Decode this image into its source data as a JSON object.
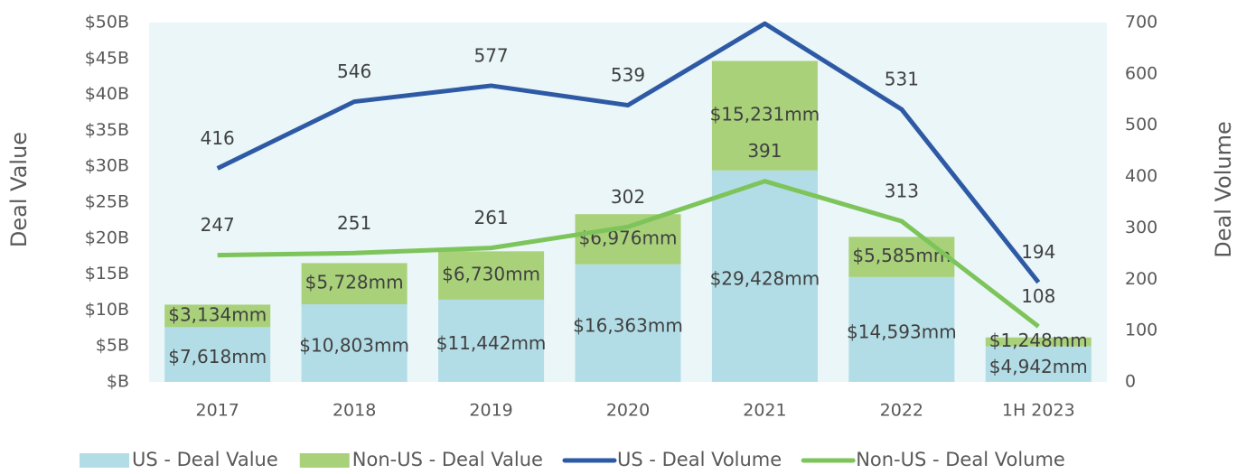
{
  "chart_data": {
    "type": "bar",
    "categories": [
      "2017",
      "2018",
      "2019",
      "2020",
      "2021",
      "2022",
      "1H 2023"
    ],
    "series": [
      {
        "name": "US - Deal Value",
        "type": "bar",
        "color": "#b3dde6",
        "values": [
          7.618,
          10.803,
          11.442,
          16.363,
          29.428,
          14.593,
          4.942
        ],
        "value_labels": [
          "$7,618mm",
          "$10,803mm",
          "$11,442mm",
          "$16,363mm",
          "$29,428mm",
          "$14,593mm",
          "$4,942mm"
        ]
      },
      {
        "name": "Non-US - Deal Value",
        "type": "bar",
        "color": "#a9d17a",
        "values": [
          3.134,
          5.728,
          6.73,
          6.976,
          15.231,
          5.585,
          1.248
        ],
        "value_labels": [
          "$3,134mm",
          "$5,728mm",
          "$6,730mm",
          "$6,976mm",
          "$15,231mm",
          "$5,585mm",
          "$1,248mm"
        ]
      },
      {
        "name": "US - Deal Volume",
        "type": "line",
        "axis": "y2",
        "color": "#2e5aa5",
        "values": [
          416,
          546,
          577,
          539,
          698,
          531,
          194
        ]
      },
      {
        "name": "Non-US - Deal Volume",
        "type": "line",
        "axis": "y2",
        "color": "#7dc45a",
        "values": [
          247,
          251,
          261,
          302,
          391,
          313,
          108
        ]
      }
    ],
    "ylabel": "Deal Value",
    "y2label": "Deal Volume",
    "ylim": [
      0,
      50
    ],
    "yticks": [
      {
        "value": 0,
        "label": "$B"
      },
      {
        "value": 5,
        "label": "$5B"
      },
      {
        "value": 10,
        "label": "$10B"
      },
      {
        "value": 15,
        "label": "$15B"
      },
      {
        "value": 20,
        "label": "$20B"
      },
      {
        "value": 25,
        "label": "$25B"
      },
      {
        "value": 30,
        "label": "$30B"
      },
      {
        "value": 35,
        "label": "$35B"
      },
      {
        "value": 40,
        "label": "$40B"
      },
      {
        "value": 45,
        "label": "$45B"
      },
      {
        "value": 50,
        "label": "$50B"
      }
    ],
    "y2lim": [
      0,
      700
    ],
    "y2ticks": [
      0,
      100,
      200,
      300,
      400,
      500,
      600,
      700
    ],
    "legend": "bottom"
  }
}
